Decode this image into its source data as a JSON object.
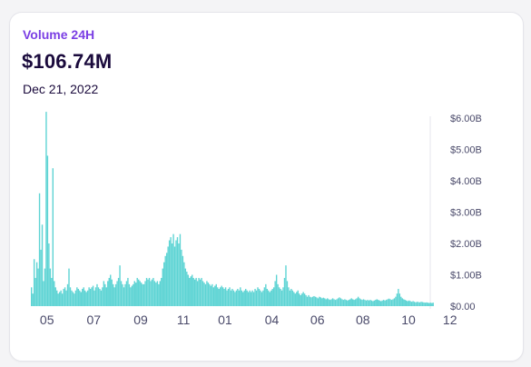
{
  "header": {
    "label": "Volume 24H",
    "value": "$106.74M",
    "date": "Dec 21, 2022"
  },
  "colors": {
    "accent": "#7b3fe4",
    "bars": "#5ed4d4",
    "text_dark": "#1a0a3c",
    "axis_text": "#4a4a6a"
  },
  "chart_data": {
    "type": "bar",
    "ylabel": "",
    "xlabel": "",
    "ylim": [
      0,
      6000000000
    ],
    "y_ticks": [
      "$0.00",
      "$1.00B",
      "$2.00B",
      "$3.00B",
      "$4.00B",
      "$5.00B",
      "$6.00B"
    ],
    "y_tick_values": [
      0,
      1000000000,
      2000000000,
      3000000000,
      4000000000,
      5000000000,
      6000000000
    ],
    "x_tick_labels": [
      "05",
      "07",
      "09",
      "11",
      "01",
      "04",
      "06",
      "08",
      "10",
      "12"
    ],
    "x_tick_index": [
      12,
      47,
      82,
      114,
      145,
      180,
      214,
      248,
      282,
      313
    ],
    "series": [
      {
        "values": [
          0.6,
          0.4,
          1.5,
          0.9,
          1.4,
          1.2,
          3.6,
          1.8,
          2.6,
          0.8,
          1.2,
          6.2,
          4.8,
          2.0,
          1.2,
          0.9,
          4.4,
          0.8,
          0.6,
          0.5,
          0.4,
          0.45,
          0.5,
          0.4,
          0.55,
          0.6,
          0.5,
          0.7,
          1.2,
          0.6,
          0.5,
          0.45,
          0.4,
          0.5,
          0.6,
          0.55,
          0.5,
          0.45,
          0.55,
          0.6,
          0.5,
          0.45,
          0.5,
          0.6,
          0.55,
          0.6,
          0.65,
          0.5,
          0.6,
          0.7,
          0.6,
          0.55,
          0.5,
          0.6,
          0.8,
          0.7,
          0.6,
          0.8,
          0.9,
          1.0,
          0.85,
          0.7,
          0.6,
          0.7,
          0.8,
          0.9,
          1.3,
          0.8,
          0.7,
          0.6,
          0.7,
          0.8,
          0.9,
          0.7,
          0.6,
          0.65,
          0.7,
          0.8,
          0.75,
          0.9,
          0.85,
          0.8,
          0.75,
          0.7,
          0.7,
          0.8,
          0.9,
          0.85,
          0.9,
          0.8,
          0.85,
          0.9,
          0.8,
          0.75,
          0.8,
          0.7,
          0.8,
          0.9,
          1.2,
          1.4,
          1.6,
          1.7,
          1.9,
          2.1,
          2.2,
          2.0,
          2.3,
          1.9,
          2.1,
          2.2,
          2.0,
          2.3,
          1.8,
          1.6,
          1.4,
          1.2,
          1.1,
          1.0,
          0.9,
          0.95,
          1.0,
          0.9,
          0.85,
          0.9,
          0.8,
          0.9,
          0.85,
          0.9,
          0.8,
          0.75,
          0.7,
          0.8,
          0.75,
          0.7,
          0.65,
          0.7,
          0.6,
          0.65,
          0.7,
          0.6,
          0.55,
          0.6,
          0.65,
          0.6,
          0.55,
          0.6,
          0.5,
          0.55,
          0.6,
          0.5,
          0.55,
          0.5,
          0.45,
          0.5,
          0.55,
          0.5,
          0.6,
          0.5,
          0.45,
          0.5,
          0.55,
          0.5,
          0.45,
          0.5,
          0.45,
          0.5,
          0.45,
          0.55,
          0.5,
          0.6,
          0.55,
          0.5,
          0.45,
          0.5,
          0.6,
          0.7,
          0.55,
          0.5,
          0.45,
          0.5,
          0.55,
          0.6,
          0.8,
          1.0,
          0.7,
          0.6,
          0.55,
          0.5,
          0.6,
          0.9,
          1.3,
          0.8,
          0.6,
          0.5,
          0.55,
          0.5,
          0.45,
          0.4,
          0.45,
          0.5,
          0.4,
          0.35,
          0.4,
          0.45,
          0.4,
          0.35,
          0.3,
          0.35,
          0.3,
          0.28,
          0.3,
          0.32,
          0.3,
          0.28,
          0.25,
          0.3,
          0.28,
          0.25,
          0.27,
          0.25,
          0.22,
          0.25,
          0.22,
          0.2,
          0.22,
          0.25,
          0.22,
          0.2,
          0.22,
          0.25,
          0.28,
          0.25,
          0.22,
          0.2,
          0.22,
          0.2,
          0.18,
          0.2,
          0.22,
          0.25,
          0.22,
          0.2,
          0.22,
          0.25,
          0.3,
          0.25,
          0.22,
          0.2,
          0.22,
          0.2,
          0.18,
          0.2,
          0.18,
          0.2,
          0.18,
          0.16,
          0.18,
          0.2,
          0.22,
          0.2,
          0.18,
          0.16,
          0.18,
          0.2,
          0.18,
          0.2,
          0.22,
          0.24,
          0.22,
          0.2,
          0.22,
          0.25,
          0.3,
          0.4,
          0.55,
          0.4,
          0.3,
          0.25,
          0.22,
          0.2,
          0.18,
          0.16,
          0.18,
          0.16,
          0.14,
          0.16,
          0.14,
          0.12,
          0.14,
          0.13,
          0.12,
          0.14,
          0.13,
          0.12,
          0.11,
          0.12,
          0.11,
          0.1,
          0.11,
          0.1,
          0.11
        ]
      }
    ]
  }
}
